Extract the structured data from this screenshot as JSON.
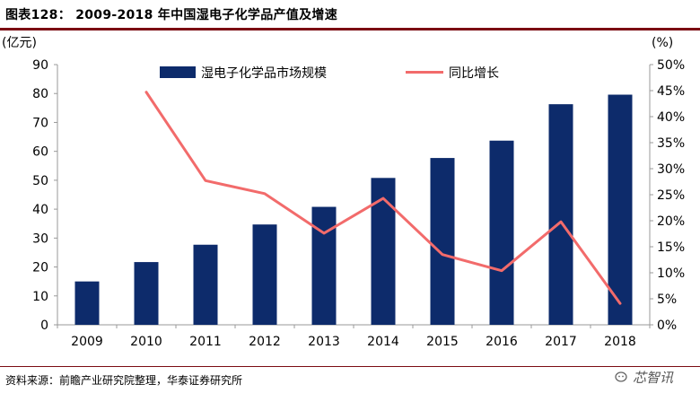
{
  "figure_title": "图表128： 2009-2018 年中国湿电子化学品产值及增速",
  "source_text": "资料来源：前瞻产业研究院整理，华泰证券研究所",
  "watermark_text": "芯智讯",
  "chart_data": {
    "type": "bar",
    "categories": [
      "2009",
      "2010",
      "2011",
      "2012",
      "2013",
      "2014",
      "2015",
      "2016",
      "2017",
      "2018"
    ],
    "series": [
      {
        "name": "湿电子化学品市场规模",
        "kind": "bar",
        "axis": "left",
        "color": "#0d2b6b",
        "values": [
          15,
          21.7,
          27.7,
          34.7,
          40.8,
          50.8,
          57.7,
          63.7,
          76.3,
          79.6
        ]
      },
      {
        "name": "同比增长",
        "kind": "line",
        "axis": "right",
        "color": "#f26b6b",
        "values": [
          null,
          44.7,
          27.7,
          25.2,
          17.6,
          24.3,
          13.5,
          10.4,
          19.8,
          4.1
        ]
      }
    ],
    "ylabel_left": "(亿元)",
    "ylabel_right": "(%)",
    "ylim_left": [
      0,
      90
    ],
    "yticks_left": [
      "0",
      "10",
      "20",
      "30",
      "40",
      "50",
      "60",
      "70",
      "80",
      "90"
    ],
    "ylim_right": [
      0,
      50
    ],
    "yticks_right": [
      "0%",
      "5%",
      "10%",
      "15%",
      "20%",
      "25%",
      "30%",
      "35%",
      "40%",
      "45%",
      "50%"
    ],
    "grid": false,
    "legend_position": "top"
  }
}
